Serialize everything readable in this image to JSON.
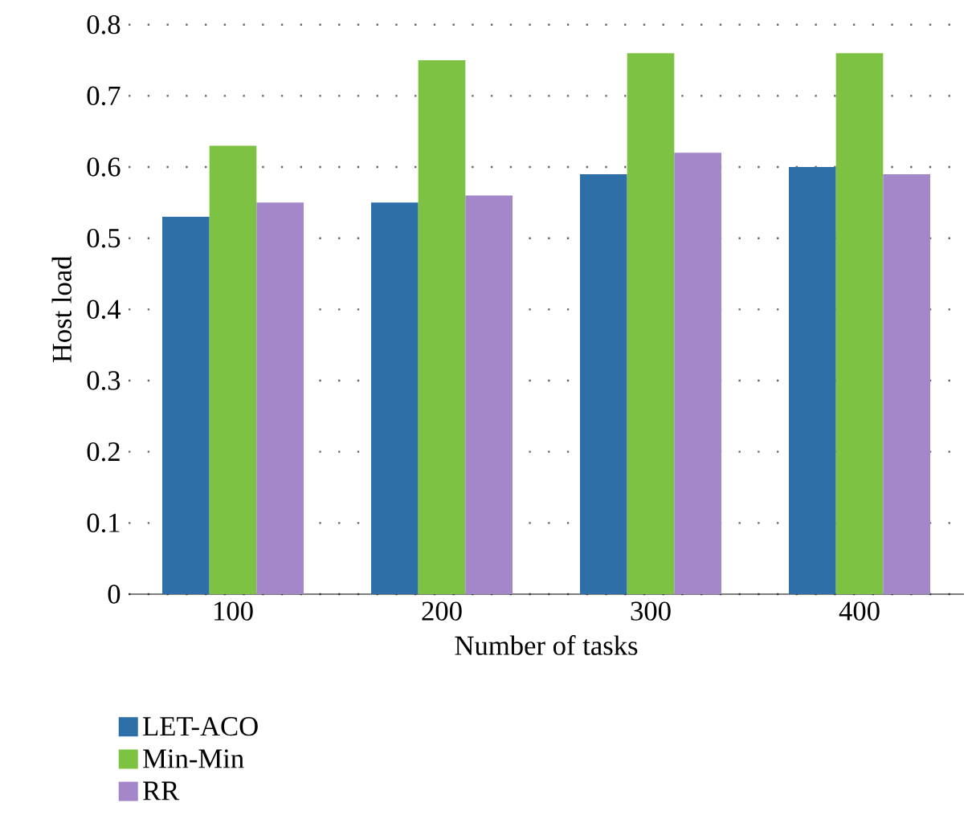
{
  "chart_data": {
    "type": "bar",
    "xlabel": "Number of tasks",
    "ylabel": "Host load",
    "categories": [
      "100",
      "200",
      "300",
      "400"
    ],
    "series": [
      {
        "name": "LET-ACO",
        "color": "#2e6fa8",
        "values": [
          0.53,
          0.55,
          0.59,
          0.6
        ]
      },
      {
        "name": "Min-Min",
        "color": "#7dc242",
        "values": [
          0.63,
          0.75,
          0.76,
          0.76
        ]
      },
      {
        "name": "RR",
        "color": "#a487c9",
        "values": [
          0.55,
          0.56,
          0.62,
          0.59
        ]
      }
    ],
    "ylim": [
      0,
      0.8
    ],
    "yticks": [
      0,
      0.1,
      0.2,
      0.3,
      0.4,
      0.5,
      0.6,
      0.7,
      0.8
    ],
    "grid": "y",
    "legend": "bottom left"
  }
}
